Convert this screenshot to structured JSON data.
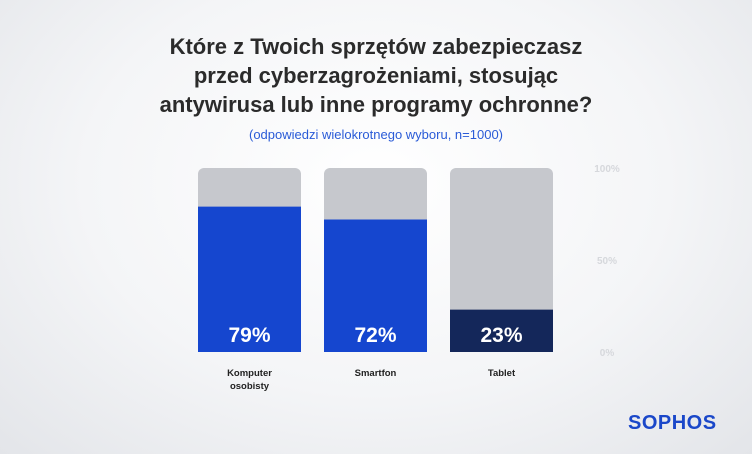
{
  "chart_data": {
    "type": "bar",
    "title": [
      "Które z Twoich sprzętów zabezpieczasz",
      "przed cyberzagrożeniami, stosując",
      "antywirusa lub inne programy ochronne?"
    ],
    "subtitle": "(odpowiedzi wielokrotnego wyboru, n=1000)",
    "categories": [
      [
        "Komputer",
        "osobisty"
      ],
      [
        "Smartfon"
      ],
      [
        "Tablet"
      ]
    ],
    "values": [
      79,
      72,
      23
    ],
    "value_labels": [
      "79%",
      "72%",
      "23%"
    ],
    "ylim": [
      0,
      100
    ],
    "y_ticks": [
      {
        "value": 0,
        "label": "0%"
      },
      {
        "value": 50,
        "label": "50%"
      },
      {
        "value": 100,
        "label": "100%"
      }
    ],
    "grid": false,
    "stacked_remainder": true
  },
  "colors": {
    "bar_primary": "#1546cf",
    "bar_highlight": "#14275a",
    "bar_remainder": "#c6c8cd",
    "tick_label": "#d6d8dc",
    "category_label": "#222222"
  },
  "logo": {
    "text": "SOPHOS"
  }
}
